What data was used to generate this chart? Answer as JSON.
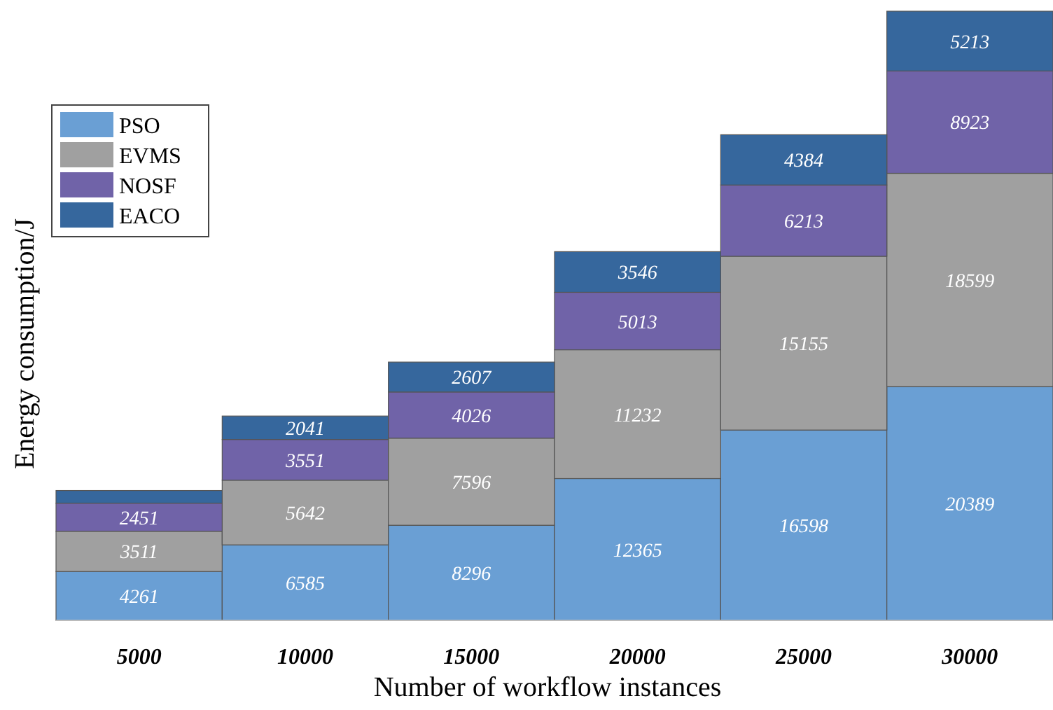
{
  "chart_data": {
    "type": "bar",
    "stacked": true,
    "xlabel": "Number of workflow instances",
    "ylabel": "Energy consumption/J",
    "categories": [
      "5000",
      "10000",
      "15000",
      "20000",
      "25000",
      "30000"
    ],
    "tick_labels": "x",
    "legend": "top left",
    "series": [
      {
        "name": "PSO",
        "color": "#6a9fd4",
        "values": [
          4261,
          6585,
          8296,
          12365,
          16598,
          20389
        ],
        "value_labels": [
          "4261",
          "6585",
          "8296",
          "12365",
          "16598",
          "20389"
        ]
      },
      {
        "name": "EVMS",
        "color": "#a0a0a0",
        "values": [
          3511,
          5642,
          7596,
          11232,
          15155,
          18599
        ],
        "value_labels": [
          "3511",
          "5642",
          "7596",
          "11232",
          "15155",
          "18599"
        ]
      },
      {
        "name": "NOSF",
        "color": "#7063a8",
        "values": [
          2451,
          3551,
          4026,
          5013,
          6213,
          8923
        ],
        "value_labels": [
          "2451",
          "3551",
          "4026",
          "5013",
          "6213",
          "8923"
        ]
      },
      {
        "name": "EACO",
        "color": "#36679d",
        "values": [
          1100,
          2041,
          2607,
          3546,
          4384,
          5213
        ],
        "value_labels": [
          null,
          "2041",
          "2607",
          "3546",
          "4384",
          "5213"
        ]
      }
    ]
  }
}
